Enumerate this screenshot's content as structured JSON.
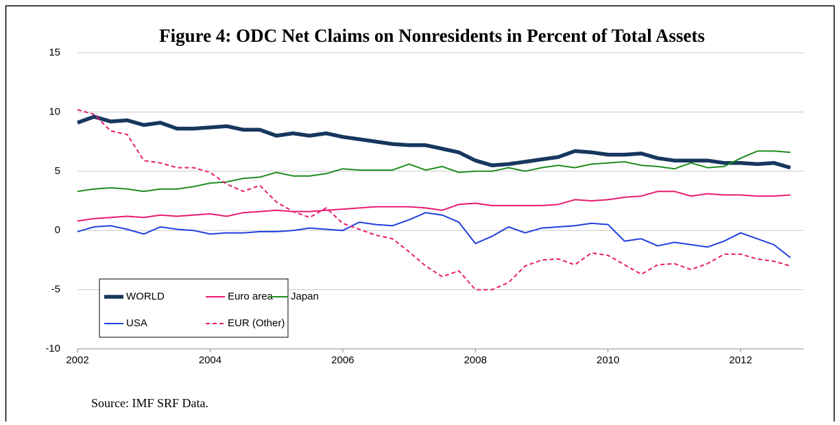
{
  "chart_data": {
    "type": "line",
    "title": "Figure 4: ODC Net Claims on Nonresidents in Percent of Total Assets",
    "source": "Source: IMF SRF Data.",
    "x": [
      2002,
      2002.25,
      2002.5,
      2002.75,
      2003,
      2003.25,
      2003.5,
      2003.75,
      2004,
      2004.25,
      2004.5,
      2004.75,
      2005,
      2005.25,
      2005.5,
      2005.75,
      2006,
      2006.25,
      2006.5,
      2006.75,
      2007,
      2007.25,
      2007.5,
      2007.75,
      2008,
      2008.25,
      2008.5,
      2008.75,
      2009,
      2009.25,
      2009.5,
      2009.75,
      2010,
      2010.25,
      2010.5,
      2010.75,
      2011,
      2011.25,
      2011.5,
      2011.75,
      2012,
      2012.25,
      2012.5,
      2012.75
    ],
    "xlim": [
      2002,
      2012.95
    ],
    "xticks": [
      2002,
      2004,
      2006,
      2008,
      2010,
      2012
    ],
    "ylim": [
      -10,
      15
    ],
    "yticks": [
      -10,
      -5,
      0,
      5,
      10,
      15
    ],
    "grid": true,
    "series": [
      {
        "name": "WORLD",
        "color": "#17375e",
        "linewidth": 5.5,
        "dashed": false,
        "values": [
          9.1,
          9.6,
          9.2,
          9.3,
          8.9,
          9.1,
          8.6,
          8.6,
          8.7,
          8.8,
          8.5,
          8.5,
          8.0,
          8.2,
          8.0,
          8.2,
          7.9,
          7.7,
          7.5,
          7.3,
          7.2,
          7.2,
          6.9,
          6.6,
          5.9,
          5.5,
          5.6,
          5.8,
          6.0,
          6.2,
          6.7,
          6.6,
          6.4,
          6.4,
          6.5,
          6.1,
          5.9,
          5.9,
          5.9,
          5.7,
          5.7,
          5.6,
          5.7,
          5.3
        ]
      },
      {
        "name": "Euro area",
        "color": "#e8196f",
        "linewidth": 2,
        "dashed": false,
        "values": [
          0.8,
          1.0,
          1.1,
          1.2,
          1.1,
          1.3,
          1.2,
          1.3,
          1.4,
          1.2,
          1.5,
          1.6,
          1.7,
          1.6,
          1.6,
          1.7,
          1.8,
          1.9,
          2.0,
          2.0,
          2.0,
          1.9,
          1.7,
          2.2,
          2.3,
          2.1,
          2.1,
          2.1,
          2.1,
          2.2,
          2.6,
          2.5,
          2.6,
          2.8,
          2.9,
          3.3,
          3.3,
          2.9,
          3.1,
          3.0,
          3.0,
          2.9,
          2.9,
          3.0
        ]
      },
      {
        "name": "Japan",
        "color": "#1e8c1e",
        "linewidth": 2,
        "dashed": false,
        "values": [
          3.3,
          3.5,
          3.6,
          3.5,
          3.3,
          3.5,
          3.5,
          3.7,
          4.0,
          4.1,
          4.4,
          4.5,
          4.9,
          4.6,
          4.6,
          4.8,
          5.2,
          5.1,
          5.1,
          5.1,
          5.6,
          5.1,
          5.4,
          4.9,
          5.0,
          5.0,
          5.3,
          5.0,
          5.3,
          5.5,
          5.3,
          5.6,
          5.7,
          5.8,
          5.5,
          5.4,
          5.2,
          5.7,
          5.3,
          5.4,
          6.1,
          6.7,
          6.7,
          6.6
        ]
      },
      {
        "name": "USA",
        "color": "#1f3fdd",
        "linewidth": 2,
        "dashed": false,
        "values": [
          -0.1,
          0.3,
          0.4,
          0.1,
          -0.3,
          0.3,
          0.1,
          0.0,
          -0.3,
          -0.2,
          -0.2,
          -0.1,
          -0.1,
          0.0,
          0.2,
          0.1,
          0.0,
          0.7,
          0.5,
          0.4,
          0.9,
          1.5,
          1.3,
          0.7,
          -1.1,
          -0.5,
          0.3,
          -0.2,
          0.2,
          0.3,
          0.4,
          0.6,
          0.5,
          -0.9,
          -0.7,
          -1.3,
          -1.0,
          -1.2,
          -1.4,
          -0.9,
          -0.2,
          -0.7,
          -1.2,
          -2.3
        ]
      },
      {
        "name": "EUR (Other)",
        "color": "#e8196f",
        "linewidth": 2,
        "dashed": true,
        "values": [
          10.2,
          9.8,
          8.4,
          8.1,
          5.9,
          5.7,
          5.3,
          5.3,
          4.9,
          3.9,
          3.3,
          3.8,
          2.4,
          1.6,
          1.1,
          1.9,
          0.6,
          0.1,
          -0.4,
          -0.7,
          -1.8,
          -3.0,
          -3.9,
          -3.4,
          -5.0,
          -5.0,
          -4.4,
          -3.0,
          -2.5,
          -2.4,
          -2.9,
          -1.9,
          -2.1,
          -2.9,
          -3.7,
          -2.9,
          -2.8,
          -3.3,
          -2.8,
          -2.0,
          -2.0,
          -2.4,
          -2.6,
          -3.0
        ]
      }
    ],
    "legend_layout": [
      [
        0,
        1,
        2
      ],
      [
        3,
        4
      ]
    ]
  }
}
